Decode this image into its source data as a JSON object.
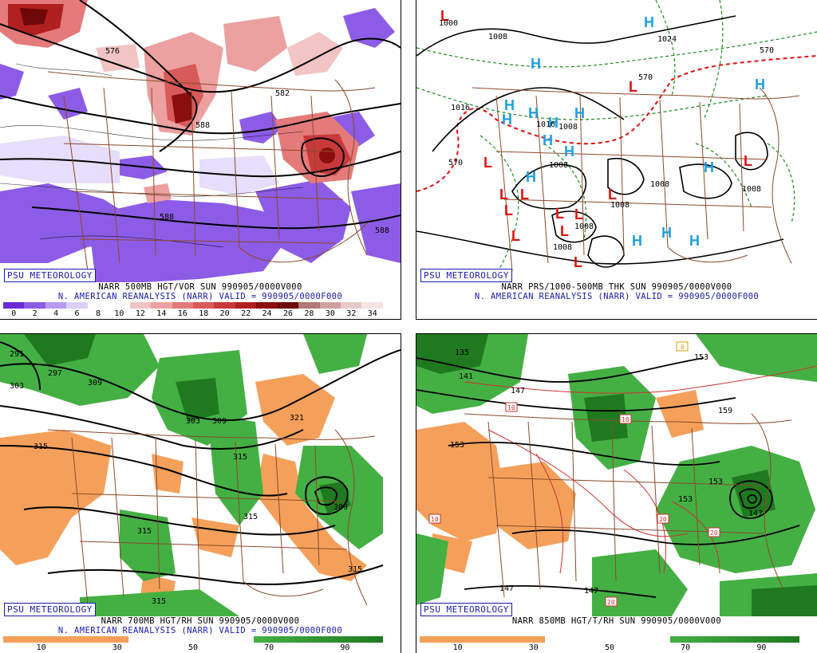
{
  "badge": "PSU METEOROLOGY",
  "panels": {
    "top_left": {
      "caption1": "NARR 500MB HGT/VOR SUN 990905/0000V000",
      "caption2": "N. AMERICAN REANALYSIS (NARR) VALID = 990905/0000F000",
      "scale_labels": [
        "0",
        "2",
        "4",
        "6",
        "8",
        "10",
        "12",
        "14",
        "16",
        "18",
        "20",
        "22",
        "24",
        "26",
        "28",
        "30",
        "32",
        "34"
      ],
      "contour_labels": [
        "576",
        "582",
        "588",
        "588",
        "588",
        "588"
      ],
      "colors": [
        "#6a2bd6",
        "#8d5ce6",
        "#b79af0",
        "#dcd0f8",
        "#ffffff",
        "#ffffff",
        "#f2c4c4",
        "#eca0a0",
        "#e47a7a",
        "#d85a5a",
        "#c83a3a",
        "#b02020",
        "#8a0e0e",
        "#6e0808",
        "#b07878",
        "#d0a0a0",
        "#e8c8c8",
        "#f4e4e4"
      ]
    },
    "top_right": {
      "caption1": "NARR PRS/1000-500MB THK SUN 990905/0000V000",
      "caption2": "N. AMERICAN REANALYSIS (NARR) VALID = 990905/0000F000",
      "isobar_labels": [
        "1000",
        "1008",
        "1016",
        "1008",
        "1008",
        "1008",
        "1008",
        "1008",
        "1008",
        "1008",
        "1024",
        "1016",
        "570",
        "570",
        "570"
      ],
      "high_symbol": "H",
      "low_symbol": "L"
    },
    "bottom_left": {
      "caption1": "NARR 700MB HGT/RH SUN 990905/0000V000",
      "caption2": "N. AMERICAN REANALYSIS (NARR) VALID = 990905/0000F000",
      "scale_labels": [
        "10",
        "30",
        "50",
        "70",
        "90"
      ],
      "contour_labels": [
        "291",
        "297",
        "303",
        "309",
        "303",
        "309",
        "321",
        "315",
        "315",
        "315",
        "315",
        "309",
        "315",
        "315"
      ]
    },
    "bottom_right": {
      "caption1": "NARR 850MB HGT/T/RH SUN 990905/0000V000",
      "scale_labels": [
        "10",
        "30",
        "50",
        "70",
        "90"
      ],
      "contour_labels": [
        "135",
        "141",
        "147",
        "153",
        "159",
        "153",
        "153",
        "147",
        "147",
        "153",
        "147"
      ],
      "temp_labels": [
        "10",
        "10",
        "10",
        "20",
        "20",
        "20",
        "0"
      ]
    }
  }
}
